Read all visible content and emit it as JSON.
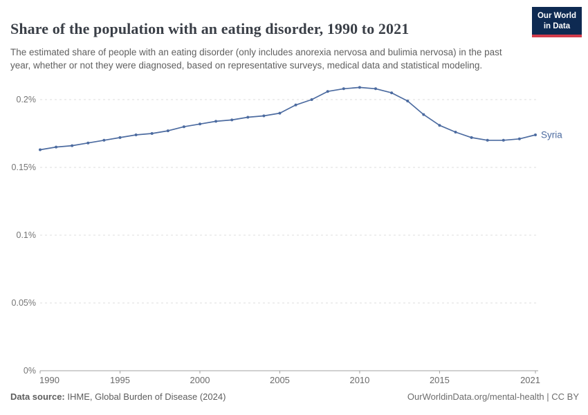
{
  "header": {
    "title": "Share of the population with an eating disorder, 1990 to 2021",
    "subtitle": "The estimated share of people with an eating disorder (only includes anorexia nervosa and bulimia nervosa) in the past year, whether or not they were diagnosed, based on representative surveys, medical data and statistical modeling.",
    "logo": {
      "line1": "Our World",
      "line2": "in Data"
    }
  },
  "chart_data": {
    "type": "line",
    "title": "Share of the population with an eating disorder, 1990 to 2021",
    "entity": "Syria",
    "xlabel": "",
    "ylabel": "",
    "unit": "%",
    "grid": true,
    "legend": "end-of-line-label",
    "xlim": [
      1990,
      2021
    ],
    "ylim": [
      0,
      0.217
    ],
    "x": [
      1990,
      1991,
      1992,
      1993,
      1994,
      1995,
      1996,
      1997,
      1998,
      1999,
      2000,
      2001,
      2002,
      2003,
      2004,
      2005,
      2006,
      2007,
      2008,
      2009,
      2010,
      2011,
      2012,
      2013,
      2014,
      2015,
      2016,
      2017,
      2018,
      2019,
      2020,
      2021
    ],
    "series": [
      {
        "name": "Syria",
        "color": "#4c6ba0",
        "values": [
          0.163,
          0.165,
          0.166,
          0.168,
          0.17,
          0.172,
          0.174,
          0.175,
          0.177,
          0.18,
          0.182,
          0.184,
          0.185,
          0.187,
          0.188,
          0.19,
          0.196,
          0.2,
          0.206,
          0.208,
          0.209,
          0.208,
          0.205,
          0.199,
          0.189,
          0.181,
          0.176,
          0.172,
          0.17,
          0.17,
          0.171,
          0.174
        ]
      }
    ],
    "x_ticks": [
      1990,
      1995,
      2000,
      2005,
      2010,
      2015,
      2021
    ],
    "y_ticks": [
      {
        "label": "0%",
        "value": 0
      },
      {
        "label": "0.05%",
        "value": 0.05
      },
      {
        "label": "0.1%",
        "value": 0.1
      },
      {
        "label": "0.15%",
        "value": 0.15
      },
      {
        "label": "0.2%",
        "value": 0.2
      }
    ]
  },
  "footer": {
    "source_label": "Data source:",
    "source_value": " IHME, Global Burden of Disease (2024)",
    "credit": "OurWorldinData.org/mental-health | CC BY"
  },
  "colors": {
    "series": "#4c6ba0",
    "gridline": "#dcdcdc",
    "axis": "#a0a0a0",
    "y_tick_text": "#757575",
    "x_tick_text": "#6a6a6a"
  }
}
